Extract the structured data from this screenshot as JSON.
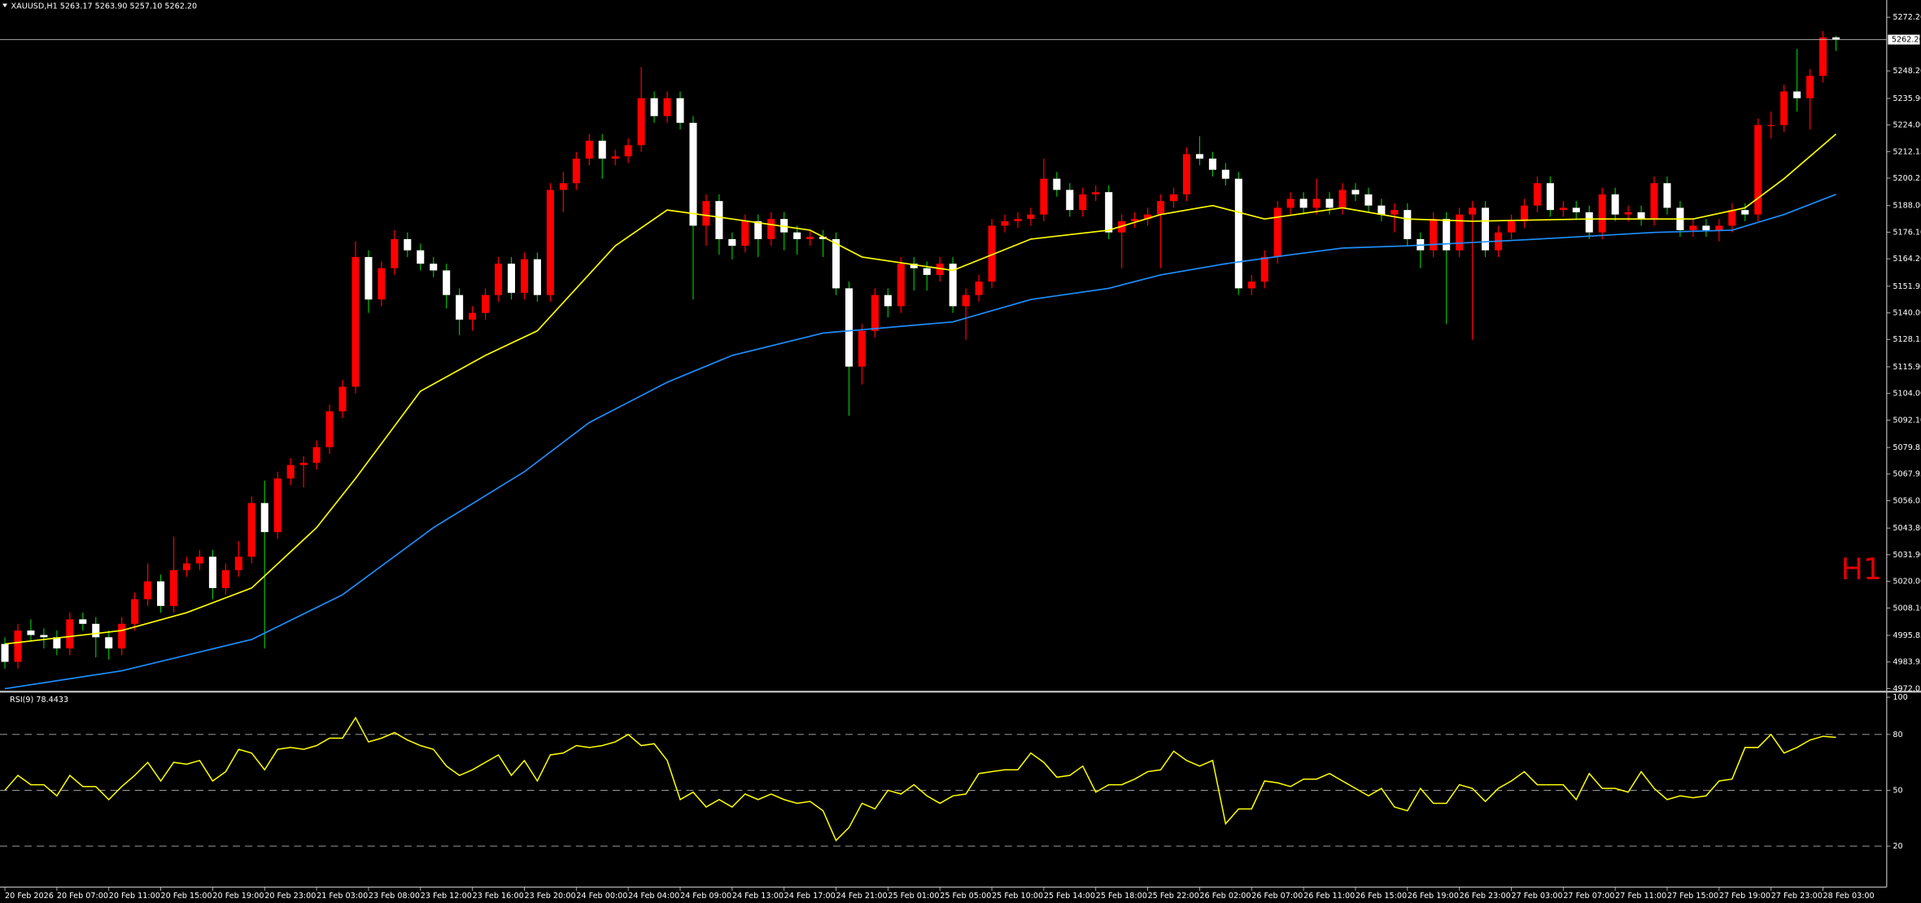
{
  "chart_data": [
    {
      "type": "candlestick",
      "title": "XAUUSD,H1  5263.17 5263.90 5257.10 5262.20",
      "annotation": "H1",
      "last_price": {
        "value": 5262.2,
        "label": "5262.20"
      },
      "up_color": "#ff0000",
      "down_color": "#ffffff",
      "ylim": [
        4971.5,
        5279.9
      ],
      "yticks": [
        {
          "value": 5272.2,
          "label": "5272.20"
        },
        {
          "value": 5248.2,
          "label": "5248.20"
        },
        {
          "value": 5235.9,
          "label": "5235.90"
        },
        {
          "value": 5224,
          "label": "5224.00"
        },
        5212.15,
        5200.25,
        {
          "value": 5188,
          "label": "5188.00"
        },
        {
          "value": 5176.1,
          "label": "5176.10"
        },
        {
          "value": 5164.2,
          "label": "5164.20"
        },
        5151.95,
        {
          "value": 5140,
          "label": "5140.00"
        },
        5128.15,
        {
          "value": 5115.9,
          "label": "5115.90"
        },
        {
          "value": 5104,
          "label": "5104.00"
        },
        {
          "value": 5092.1,
          "label": "5092.10"
        },
        5079.85,
        5067.95,
        5056.05,
        {
          "value": 5043.8,
          "label": "5043.80"
        },
        {
          "value": 5031.9,
          "label": "5031.90"
        },
        {
          "value": 5020,
          "label": "5020.00"
        },
        {
          "value": 5008.1,
          "label": "5008.10"
        },
        4995.85,
        4983.95,
        4972.05
      ],
      "categories": [
        "20 Feb 2026",
        null,
        null,
        null,
        "20 Feb 07:00",
        null,
        null,
        null,
        "20 Feb 11:00",
        null,
        null,
        null,
        "20 Feb 15:00",
        null,
        null,
        null,
        "20 Feb 19:00",
        null,
        null,
        null,
        "20 Feb 23:00",
        null,
        null,
        null,
        "21 Feb 03:00",
        null,
        null,
        null,
        "23 Feb 08:00",
        null,
        null,
        null,
        "23 Feb 12:00",
        null,
        null,
        null,
        "23 Feb 16:00",
        null,
        null,
        null,
        "23 Feb 20:00",
        null,
        null,
        null,
        "24 Feb 00:00",
        null,
        null,
        null,
        "24 Feb 04:00",
        null,
        null,
        null,
        "24 Feb 09:00",
        null,
        null,
        null,
        "24 Feb 13:00",
        null,
        null,
        null,
        "24 Feb 17:00",
        null,
        null,
        null,
        "24 Feb 21:00",
        null,
        null,
        null,
        "25 Feb 01:00",
        null,
        null,
        null,
        "25 Feb 05:00",
        null,
        null,
        null,
        "25 Feb 10:00",
        null,
        null,
        null,
        "25 Feb 14:00",
        null,
        null,
        null,
        "25 Feb 18:00",
        null,
        null,
        null,
        "25 Feb 22:00",
        null,
        null,
        null,
        "26 Feb 02:00",
        null,
        null,
        null,
        "26 Feb 07:00",
        null,
        null,
        null,
        "26 Feb 11:00",
        null,
        null,
        null,
        "26 Feb 15:00",
        null,
        null,
        null,
        "26 Feb 19:00",
        null,
        null,
        null,
        "26 Feb 23:00",
        null,
        null,
        null,
        "27 Feb 03:00",
        null,
        null,
        null,
        "27 Feb 07:00",
        null,
        null,
        null,
        "27 Feb 11:00",
        null,
        null,
        null,
        "27 Feb 15:00",
        null,
        null,
        null,
        "27 Feb 19:00",
        null,
        null,
        null,
        "27 Feb 23:00",
        null,
        null,
        null,
        "28 Feb 03:00",
        null
      ],
      "open": [
        4992,
        4984,
        4998,
        4996,
        4995,
        4990,
        5003,
        5001,
        4995,
        4990,
        5001,
        5012,
        5020,
        5009,
        5025,
        5028,
        5031,
        5017,
        5025,
        5031,
        5055,
        5042,
        5066,
        5072,
        5073,
        5080,
        5096,
        5107,
        5165,
        5146,
        5160,
        5173,
        5168,
        5162,
        5159,
        5148,
        5137,
        5140,
        5148,
        5162,
        5149,
        5164,
        5148,
        5195,
        5198,
        5209,
        5217,
        5209,
        5210,
        5215,
        5236,
        5228,
        5236,
        5225,
        5179,
        5190,
        5173,
        5170,
        5181,
        5173,
        5182,
        5176,
        5173,
        5174,
        5173,
        5151,
        5116,
        5132,
        5148,
        5143,
        5162,
        5160,
        5157,
        5162,
        5143,
        5148,
        5154,
        5179,
        5181,
        5182,
        5184,
        5200,
        5195,
        5186,
        5193,
        5194,
        5176,
        5181,
        5182,
        5184,
        5190,
        5193,
        5211,
        5209,
        5204,
        5200,
        5151,
        5154,
        5165,
        5187,
        5191,
        5187,
        5191,
        5187,
        5195,
        5193,
        5188,
        5184,
        5186,
        5173,
        5168,
        5182,
        5168,
        5184,
        5187,
        5168,
        5176,
        5181,
        5188,
        5198,
        5186,
        5187,
        5185,
        5176,
        5193,
        5184,
        5185,
        5182,
        5198,
        5187,
        5177,
        5179,
        5177,
        5179,
        5186,
        5184,
        5224,
        5224,
        5239,
        5236,
        5246,
        5263.17
      ],
      "high": [
        4995,
        5001,
        5003,
        4999,
        4998,
        5006,
        5006,
        5004,
        4998,
        5004,
        5015,
        5028,
        5023,
        5040,
        5031,
        5034,
        5034,
        5028,
        5038,
        5058,
        5065,
        5069,
        5075,
        5076,
        5083,
        5099,
        5110,
        5172,
        5168,
        5163,
        5177,
        5176,
        5171,
        5165,
        5162,
        5151,
        5143,
        5151,
        5165,
        5165,
        5167,
        5167,
        5198,
        5203,
        5212,
        5220,
        5220,
        5213,
        5218,
        5250,
        5239,
        5239,
        5239,
        5228,
        5193,
        5193,
        5176,
        5184,
        5184,
        5185,
        5185,
        5179,
        5177,
        5177,
        5176,
        5154,
        5135,
        5151,
        5151,
        5165,
        5165,
        5163,
        5165,
        5165,
        5151,
        5157,
        5182,
        5184,
        5185,
        5187,
        5209,
        5203,
        5198,
        5196,
        5197,
        5197,
        5184,
        5185,
        5187,
        5193,
        5196,
        5214,
        5219,
        5212,
        5207,
        5203,
        5157,
        5168,
        5190,
        5194,
        5194,
        5200,
        5194,
        5198,
        5198,
        5196,
        5191,
        5189,
        5189,
        5176,
        5185,
        5185,
        5187,
        5190,
        5190,
        5179,
        5184,
        5191,
        5201,
        5201,
        5190,
        5190,
        5188,
        5196,
        5196,
        5188,
        5188,
        5201,
        5201,
        5190,
        5182,
        5182,
        5182,
        5189,
        5189,
        5227,
        5230,
        5242,
        5258,
        5249,
        5266,
        5263.9
      ],
      "low": [
        4981,
        4981,
        4993,
        4990,
        4987,
        4987,
        4998,
        4986,
        4985,
        4987,
        4998,
        5009,
        5006,
        5006,
        5022,
        5025,
        5012,
        5014,
        5022,
        5028,
        4990,
        5039,
        5063,
        5062,
        5070,
        5077,
        5093,
        5104,
        5140,
        5143,
        5157,
        5165,
        5159,
        5156,
        5142,
        5130,
        5132,
        5137,
        5145,
        5146,
        5146,
        5145,
        5145,
        5185,
        5195,
        5206,
        5200,
        5206,
        5207,
        5212,
        5225,
        5225,
        5222,
        5146,
        5170,
        5166,
        5164,
        5167,
        5165,
        5170,
        5168,
        5166,
        5170,
        5165,
        5148,
        5094,
        5108,
        5129,
        5138,
        5140,
        5150,
        5150,
        5154,
        5140,
        5128,
        5145,
        5151,
        5176,
        5178,
        5179,
        5181,
        5192,
        5183,
        5183,
        5190,
        5173,
        5160,
        5178,
        5179,
        5160,
        5187,
        5190,
        5206,
        5201,
        5197,
        5148,
        5148,
        5151,
        5162,
        5184,
        5184,
        5184,
        5184,
        5184,
        5190,
        5185,
        5181,
        5176,
        5170,
        5160,
        5165,
        5135,
        5165,
        5128,
        5165,
        5165,
        5173,
        5178,
        5185,
        5183,
        5183,
        5182,
        5173,
        5173,
        5181,
        5181,
        5179,
        5179,
        5184,
        5174,
        5174,
        5174,
        5172,
        5176,
        5181,
        5181,
        5218,
        5221,
        5230,
        5222,
        5243,
        5257.1
      ],
      "close": [
        4984,
        4998,
        4996,
        4995,
        4990,
        5003,
        5001,
        4995,
        4990,
        5001,
        5012,
        5020,
        5009,
        5025,
        5028,
        5031,
        5017,
        5025,
        5031,
        5055,
        5042,
        5066,
        5072,
        5073,
        5080,
        5096,
        5107,
        5165,
        5146,
        5160,
        5173,
        5168,
        5162,
        5159,
        5148,
        5137,
        5140,
        5148,
        5162,
        5149,
        5164,
        5148,
        5195,
        5198,
        5209,
        5217,
        5209,
        5210,
        5215,
        5236,
        5228,
        5236,
        5225,
        5179,
        5190,
        5173,
        5170,
        5181,
        5173,
        5182,
        5176,
        5173,
        5174,
        5173,
        5151,
        5116,
        5132,
        5148,
        5143,
        5162,
        5160,
        5157,
        5162,
        5143,
        5148,
        5154,
        5179,
        5181,
        5182,
        5184,
        5200,
        5195,
        5186,
        5193,
        5194,
        5176,
        5181,
        5182,
        5184,
        5190,
        5193,
        5211,
        5209,
        5204,
        5200,
        5151,
        5154,
        5165,
        5187,
        5191,
        5187,
        5191,
        5187,
        5195,
        5193,
        5188,
        5184,
        5186,
        5173,
        5168,
        5182,
        5168,
        5184,
        5187,
        5168,
        5176,
        5181,
        5188,
        5198,
        5186,
        5187,
        5185,
        5176,
        5193,
        5184,
        5185,
        5182,
        5198,
        5187,
        5177,
        5179,
        5177,
        5179,
        5186,
        5184,
        5224,
        5224,
        5239,
        5236,
        5246,
        5263.17,
        5262.2
      ],
      "series": [
        {
          "color": "#ffff00",
          "x": [
            0,
            9,
            14,
            19,
            24,
            27,
            32,
            37,
            41,
            47,
            51,
            56,
            62,
            66,
            73,
            79,
            85,
            89,
            93,
            97,
            103,
            108,
            113,
            122,
            130,
            134,
            137,
            141
          ],
          "values": [
            4992,
            4998,
            5006,
            5017,
            5044,
            5066,
            5105,
            5121,
            5132,
            5170,
            5186,
            5182,
            5177,
            5165,
            5159,
            5173,
            5177,
            5184,
            5188,
            5182,
            5187,
            5182,
            5181,
            5182,
            5182,
            5187,
            5200,
            5220
          ]
        },
        {
          "color": "#1e90ff",
          "x": [
            0,
            9,
            19,
            26,
            33,
            40,
            45,
            51,
            56,
            63,
            67,
            73,
            79,
            85,
            89,
            94,
            99,
            103,
            108,
            118,
            127,
            133,
            137,
            141
          ],
          "values": [
            4972,
            4980,
            4994,
            5014,
            5044,
            5069,
            5091,
            5109,
            5121,
            5131,
            5133,
            5136,
            5146,
            5151,
            5157,
            5162,
            5166,
            5169,
            5170,
            5173,
            5176,
            5177,
            5184,
            5193
          ]
        }
      ]
    },
    {
      "type": "line",
      "title": "RSI(9) 78.4433",
      "color": "#ffff00",
      "ylim": [
        -2,
        102
      ],
      "yticks": [
        20,
        50,
        80,
        100
      ],
      "levels": [
        20,
        50,
        80
      ],
      "values": [
        50,
        58,
        53,
        53,
        47,
        58,
        52,
        52,
        45,
        52,
        58,
        65,
        55,
        65,
        64,
        66,
        55,
        60,
        72,
        70,
        61,
        72,
        73,
        72,
        74,
        78,
        78,
        89,
        76,
        78,
        81,
        77,
        74,
        72,
        63,
        58,
        61,
        65,
        69,
        58,
        66,
        55,
        69,
        70,
        74,
        73,
        74,
        76,
        80,
        74,
        75,
        66,
        45,
        49,
        41,
        45,
        41,
        48,
        45,
        48,
        45,
        43,
        44,
        39,
        23,
        30,
        43,
        40,
        50,
        48,
        53,
        47,
        43,
        47,
        48,
        59,
        60,
        61,
        61,
        70,
        65,
        57,
        58,
        63,
        49,
        53,
        53,
        56,
        60,
        61,
        71,
        66,
        63,
        66,
        32,
        40,
        40,
        55,
        54,
        52,
        56,
        56,
        59,
        55,
        51,
        47,
        51,
        41,
        39,
        51,
        43,
        43,
        53,
        51,
        44,
        51,
        55,
        60,
        53,
        53,
        53,
        45,
        59,
        51,
        51,
        49,
        60,
        51,
        45,
        47,
        46,
        47,
        55,
        56,
        73,
        73,
        80,
        70,
        73,
        77,
        79,
        78.4433
      ]
    }
  ]
}
